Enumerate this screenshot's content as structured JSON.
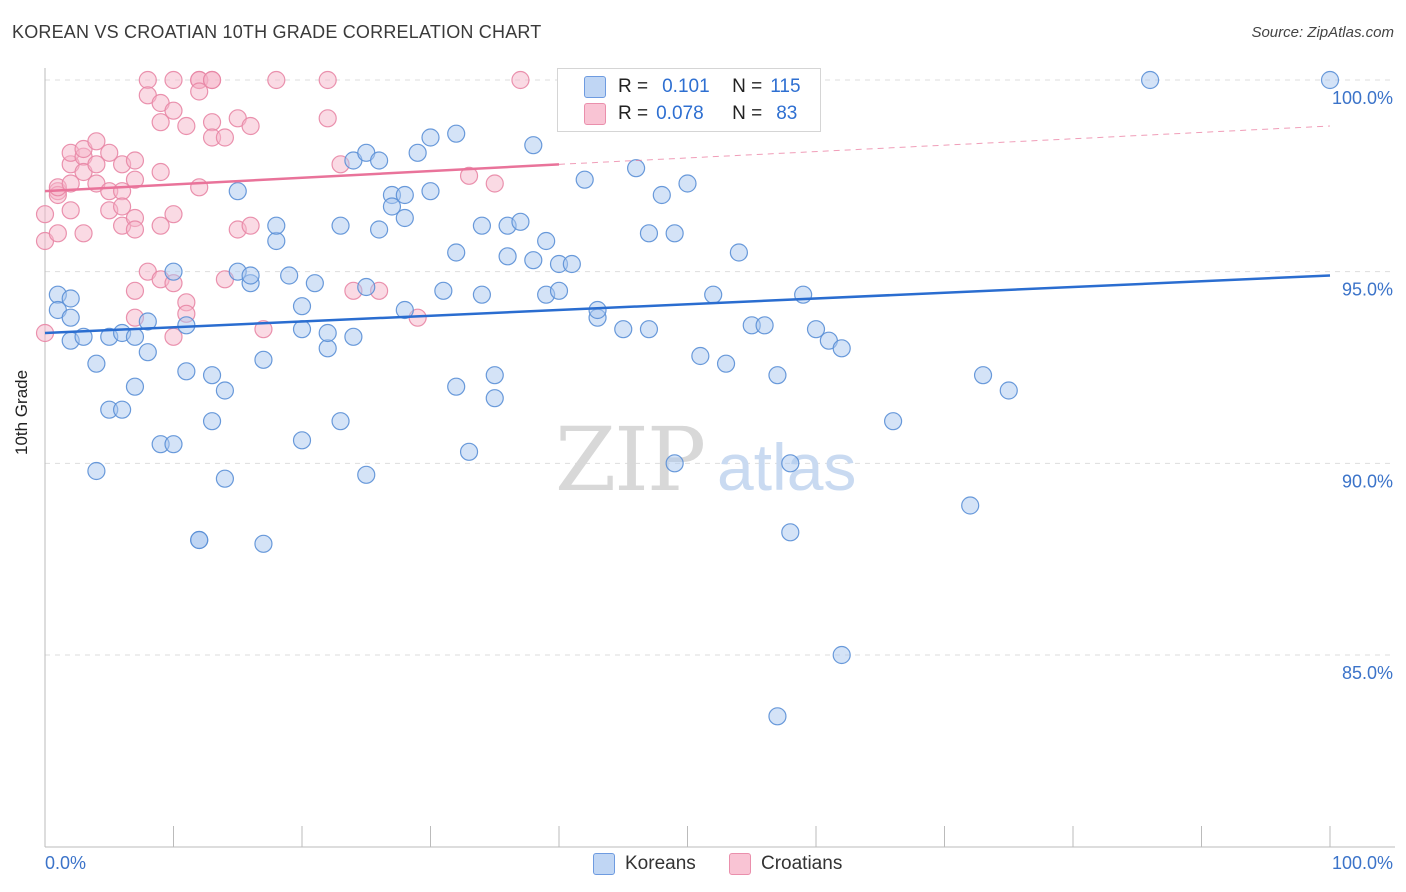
{
  "title": "KOREAN VS CROATIAN 10TH GRADE CORRELATION CHART",
  "source": "Source: ZipAtlas.com",
  "watermark": {
    "zip": "ZIP",
    "atlas": "atlas"
  },
  "legend": {
    "r_label": "R =",
    "n_label": "N =",
    "items": [
      {
        "r": "0.101",
        "n": "115"
      },
      {
        "r": "0.078",
        "n": "83"
      }
    ]
  },
  "colors": {
    "koreans_fill": "#a9c7f0",
    "koreans_stroke": "#5a8fd6",
    "koreans_line": "#2a6dd0",
    "croatians_fill": "#f6b6ca",
    "croatians_stroke": "#e886a5",
    "croatians_line": "#e9739a",
    "axis_text": "#3b73c9",
    "grid": "#dddddd"
  },
  "chart_data": {
    "type": "scatter",
    "title": "KOREAN VS CROATIAN 10TH GRADE CORRELATION CHART",
    "xlabel": "",
    "ylabel": "10th Grade",
    "xlim": [
      0,
      100
    ],
    "ylim": [
      80.0,
      101.0
    ],
    "x_tick_labels": [
      "0.0%",
      "100.0%"
    ],
    "y_ticks": [
      85.0,
      90.0,
      95.0,
      100.0
    ],
    "y_tick_labels": [
      "85.0%",
      "90.0%",
      "95.0%",
      "100.0%"
    ],
    "grid": true,
    "legend_position": "top-center",
    "series": [
      {
        "name": "Koreans",
        "trend": {
          "x": [
            0,
            100
          ],
          "y": [
            93.4,
            94.9
          ]
        },
        "points": [
          [
            1,
            94.4
          ],
          [
            1,
            94.0
          ],
          [
            2,
            94.3
          ],
          [
            2,
            93.8
          ],
          [
            2,
            93.2
          ],
          [
            3,
            93.3
          ],
          [
            4,
            92.6
          ],
          [
            4,
            89.8
          ],
          [
            5,
            93.3
          ],
          [
            5,
            91.4
          ],
          [
            6,
            93.4
          ],
          [
            6,
            91.4
          ],
          [
            7,
            93.3
          ],
          [
            7,
            92.0
          ],
          [
            8,
            92.9
          ],
          [
            8,
            93.7
          ],
          [
            9,
            90.5
          ],
          [
            10,
            95.0
          ],
          [
            10,
            90.5
          ],
          [
            11,
            93.6
          ],
          [
            11,
            92.4
          ],
          [
            12,
            88.0
          ],
          [
            12,
            88.0
          ],
          [
            13,
            91.1
          ],
          [
            13,
            92.3
          ],
          [
            14,
            89.6
          ],
          [
            14,
            91.9
          ],
          [
            15,
            97.1
          ],
          [
            15,
            95.0
          ],
          [
            16,
            94.7
          ],
          [
            16,
            94.9
          ],
          [
            17,
            92.7
          ],
          [
            17,
            87.9
          ],
          [
            18,
            95.8
          ],
          [
            18,
            96.2
          ],
          [
            19,
            94.9
          ],
          [
            20,
            93.5
          ],
          [
            20,
            94.1
          ],
          [
            20,
            90.6
          ],
          [
            21,
            94.7
          ],
          [
            22,
            93.0
          ],
          [
            22,
            93.4
          ],
          [
            23,
            96.2
          ],
          [
            23,
            91.1
          ],
          [
            24,
            93.3
          ],
          [
            24,
            97.9
          ],
          [
            25,
            94.6
          ],
          [
            25,
            98.1
          ],
          [
            25,
            89.7
          ],
          [
            26,
            97.9
          ],
          [
            26,
            96.1
          ],
          [
            27,
            97.0
          ],
          [
            27,
            96.7
          ],
          [
            28,
            97.0
          ],
          [
            28,
            96.4
          ],
          [
            28,
            94.0
          ],
          [
            29,
            98.1
          ],
          [
            30,
            98.5
          ],
          [
            30,
            97.1
          ],
          [
            31,
            94.5
          ],
          [
            32,
            98.6
          ],
          [
            32,
            92.0
          ],
          [
            32,
            95.5
          ],
          [
            33,
            90.3
          ],
          [
            34,
            96.2
          ],
          [
            34,
            94.4
          ],
          [
            35,
            92.3
          ],
          [
            35,
            91.7
          ],
          [
            36,
            95.4
          ],
          [
            36,
            96.2
          ],
          [
            37,
            96.3
          ],
          [
            38,
            98.3
          ],
          [
            38,
            95.3
          ],
          [
            39,
            94.4
          ],
          [
            39,
            95.8
          ],
          [
            40,
            95.2
          ],
          [
            40,
            94.5
          ],
          [
            41,
            95.2
          ],
          [
            42,
            97.4
          ],
          [
            43,
            93.8
          ],
          [
            43,
            94.0
          ],
          [
            45,
            93.5
          ],
          [
            46,
            97.7
          ],
          [
            47,
            93.5
          ],
          [
            47,
            96.0
          ],
          [
            48,
            97.0
          ],
          [
            49,
            96.0
          ],
          [
            49,
            90.0
          ],
          [
            50,
            97.3
          ],
          [
            51,
            92.8
          ],
          [
            52,
            94.4
          ],
          [
            53,
            92.6
          ],
          [
            54,
            95.5
          ],
          [
            55,
            93.6
          ],
          [
            56,
            93.6
          ],
          [
            57,
            83.4
          ],
          [
            57,
            92.3
          ],
          [
            58,
            90.0
          ],
          [
            58,
            88.2
          ],
          [
            59,
            94.4
          ],
          [
            60,
            93.5
          ],
          [
            61,
            93.2
          ],
          [
            62,
            93.0
          ],
          [
            62,
            85.0
          ],
          [
            66,
            91.1
          ],
          [
            72,
            88.9
          ],
          [
            73,
            92.3
          ],
          [
            75,
            91.9
          ],
          [
            86,
            100.0
          ],
          [
            100,
            100.0
          ]
        ]
      },
      {
        "name": "Croatians",
        "trend": {
          "x": [
            0,
            40
          ],
          "y": [
            97.1,
            97.8
          ],
          "extended": {
            "x": [
              40,
              100
            ],
            "y": [
              97.8,
              98.8
            ]
          }
        },
        "points": [
          [
            0,
            95.8
          ],
          [
            0,
            96.5
          ],
          [
            0,
            93.4
          ],
          [
            1,
            97.1
          ],
          [
            1,
            97.0
          ],
          [
            1,
            96.0
          ],
          [
            1,
            97.2
          ],
          [
            2,
            96.6
          ],
          [
            2,
            97.3
          ],
          [
            2,
            97.8
          ],
          [
            2,
            98.1
          ],
          [
            3,
            98.0
          ],
          [
            3,
            97.6
          ],
          [
            3,
            98.2
          ],
          [
            3,
            96.0
          ],
          [
            4,
            98.4
          ],
          [
            4,
            97.3
          ],
          [
            4,
            97.8
          ],
          [
            5,
            97.1
          ],
          [
            5,
            98.1
          ],
          [
            5,
            96.6
          ],
          [
            6,
            97.1
          ],
          [
            6,
            96.7
          ],
          [
            6,
            96.2
          ],
          [
            6,
            97.8
          ],
          [
            7,
            97.9
          ],
          [
            7,
            97.4
          ],
          [
            7,
            96.4
          ],
          [
            7,
            96.1
          ],
          [
            7,
            93.8
          ],
          [
            7,
            94.5
          ],
          [
            8,
            100.0
          ],
          [
            8,
            95.0
          ],
          [
            8,
            99.6
          ],
          [
            9,
            98.9
          ],
          [
            9,
            97.6
          ],
          [
            9,
            96.2
          ],
          [
            9,
            99.4
          ],
          [
            9,
            94.8
          ],
          [
            10,
            100.0
          ],
          [
            10,
            99.2
          ],
          [
            10,
            96.5
          ],
          [
            10,
            94.7
          ],
          [
            10,
            93.3
          ],
          [
            11,
            98.8
          ],
          [
            11,
            94.2
          ],
          [
            11,
            93.9
          ],
          [
            12,
            100.0
          ],
          [
            12,
            100.0
          ],
          [
            12,
            99.7
          ],
          [
            12,
            97.2
          ],
          [
            13,
            100.0
          ],
          [
            13,
            100.0
          ],
          [
            13,
            98.9
          ],
          [
            13,
            98.5
          ],
          [
            14,
            98.5
          ],
          [
            14,
            94.8
          ],
          [
            15,
            99.0
          ],
          [
            15,
            96.1
          ],
          [
            16,
            96.2
          ],
          [
            16,
            98.8
          ],
          [
            17,
            93.5
          ],
          [
            18,
            100.0
          ],
          [
            22,
            100.0
          ],
          [
            22,
            99.0
          ],
          [
            23,
            97.8
          ],
          [
            24,
            94.5
          ],
          [
            26,
            94.5
          ],
          [
            29,
            93.8
          ],
          [
            33,
            97.5
          ],
          [
            35,
            97.3
          ],
          [
            37,
            100.0
          ]
        ]
      }
    ]
  }
}
